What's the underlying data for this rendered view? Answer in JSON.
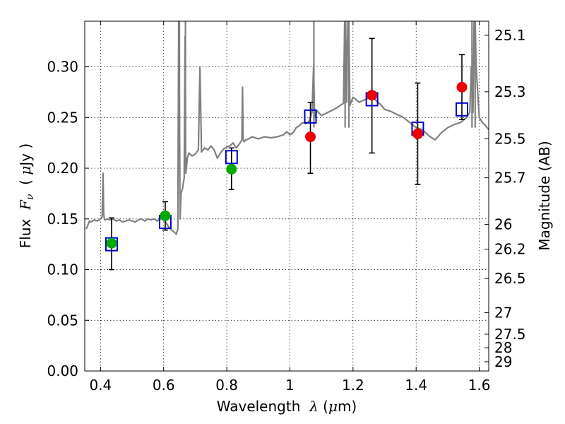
{
  "chart_data": {
    "type": "scatter",
    "xlabel": {
      "prefix": "Wavelength  ",
      "symbol": "λ",
      "unit_open": " (",
      "unit_mu": "μ",
      "unit_rest": "m)"
    },
    "ylabel": {
      "prefix": "Flux  ",
      "symbol": "F",
      "sub": "ν",
      "unit_open": "  ( ",
      "unit_mu": "μ",
      "unit_rest": "Jy )"
    },
    "y2label": "Magnitude (AB)",
    "xlim": [
      0.35,
      1.63
    ],
    "ylim": [
      0.0,
      0.345
    ],
    "xticks": [
      0.4,
      0.6,
      0.8,
      1.0,
      1.2,
      1.4,
      1.6
    ],
    "xtick_labels": [
      "0.4",
      "0.6",
      "0.8",
      "1",
      "1.2",
      "1.4",
      "1.6"
    ],
    "yticks": [
      0.0,
      0.05,
      0.1,
      0.15,
      0.2,
      0.25,
      0.3
    ],
    "ytick_labels": [
      "0.00",
      "0.05",
      "0.10",
      "0.15",
      "0.20",
      "0.25",
      "0.30"
    ],
    "right_axis_ticks": [
      {
        "mag": 25.1,
        "label": "25.1"
      },
      {
        "mag": 25.3,
        "label": "25.3"
      },
      {
        "mag": 25.5,
        "label": "25.5"
      },
      {
        "mag": 25.7,
        "label": "25.7"
      },
      {
        "mag": 26.0,
        "label": "26"
      },
      {
        "mag": 26.2,
        "label": "26.2"
      },
      {
        "mag": 26.5,
        "label": "26.5"
      },
      {
        "mag": 27.0,
        "label": "27"
      },
      {
        "mag": 27.5,
        "label": "27.5"
      },
      {
        "mag": 28.0,
        "label": "28"
      },
      {
        "mag": 29.0,
        "label": "29"
      }
    ],
    "grid": true,
    "series": [
      {
        "name": "model_spectrum",
        "kind": "line",
        "color": "#808080",
        "x": [
          0.355,
          0.36,
          0.365,
          0.37,
          0.38,
          0.39,
          0.4,
          0.405,
          0.408,
          0.41,
          0.412,
          0.415,
          0.42,
          0.43,
          0.44,
          0.45,
          0.46,
          0.47,
          0.48,
          0.49,
          0.5,
          0.51,
          0.52,
          0.53,
          0.54,
          0.55,
          0.56,
          0.57,
          0.58,
          0.59,
          0.6,
          0.61,
          0.62,
          0.63,
          0.64,
          0.645,
          0.648,
          0.65,
          0.652,
          0.655,
          0.66,
          0.662,
          0.665,
          0.668,
          0.67,
          0.672,
          0.675,
          0.68,
          0.69,
          0.7,
          0.71,
          0.715,
          0.72,
          0.73,
          0.74,
          0.75,
          0.76,
          0.77,
          0.78,
          0.79,
          0.8,
          0.81,
          0.82,
          0.83,
          0.84,
          0.848,
          0.85,
          0.852,
          0.855,
          0.86,
          0.87,
          0.88,
          0.9,
          0.92,
          0.94,
          0.96,
          0.98,
          0.99,
          1.0,
          1.01,
          1.02,
          1.03,
          1.04,
          1.05,
          1.06,
          1.07,
          1.075,
          1.078,
          1.08,
          1.082,
          1.085,
          1.09,
          1.1,
          1.12,
          1.14,
          1.16,
          1.17,
          1.175,
          1.18,
          1.185,
          1.19,
          1.2,
          1.22,
          1.24,
          1.26,
          1.28,
          1.29,
          1.3,
          1.32,
          1.34,
          1.36,
          1.38,
          1.4,
          1.42,
          1.44,
          1.46,
          1.48,
          1.5,
          1.52,
          1.54,
          1.56,
          1.57,
          1.575,
          1.58,
          1.585,
          1.59,
          1.6,
          1.61,
          1.62,
          1.63
        ],
        "y": [
          0.14,
          0.144,
          0.148,
          0.147,
          0.149,
          0.148,
          0.15,
          0.152,
          0.195,
          0.155,
          0.15,
          0.149,
          0.15,
          0.149,
          0.15,
          0.148,
          0.149,
          0.147,
          0.148,
          0.149,
          0.148,
          0.147,
          0.149,
          0.15,
          0.148,
          0.15,
          0.149,
          0.15,
          0.148,
          0.15,
          0.15,
          0.145,
          0.14,
          0.138,
          0.135,
          0.14,
          0.38,
          0.26,
          0.15,
          0.175,
          0.18,
          0.185,
          0.19,
          0.33,
          0.195,
          0.2,
          0.21,
          0.215,
          0.212,
          0.214,
          0.218,
          0.3,
          0.216,
          0.22,
          0.218,
          0.222,
          0.218,
          0.21,
          0.215,
          0.219,
          0.221,
          0.222,
          0.225,
          0.22,
          0.224,
          0.228,
          0.28,
          0.228,
          0.226,
          0.228,
          0.229,
          0.231,
          0.229,
          0.231,
          0.23,
          0.231,
          0.233,
          0.236,
          0.233,
          0.235,
          0.24,
          0.242,
          0.245,
          0.244,
          0.246,
          0.255,
          0.3,
          0.255,
          0.25,
          0.253,
          0.257,
          0.255,
          0.252,
          0.255,
          0.258,
          0.262,
          0.264,
          0.38,
          0.265,
          0.38,
          0.262,
          0.27,
          0.265,
          0.268,
          0.27,
          0.265,
          0.262,
          0.258,
          0.256,
          0.253,
          0.25,
          0.245,
          0.24,
          0.238,
          0.232,
          0.228,
          0.235,
          0.24,
          0.243,
          0.245,
          0.25,
          0.255,
          0.3,
          0.255,
          0.38,
          0.3,
          0.25,
          0.245,
          0.242,
          0.238
        ],
        "extends_past_top_near_um": [
          0.649,
          0.65,
          0.669,
          1.076,
          1.175,
          1.187,
          1.577,
          1.587
        ]
      },
      {
        "name": "model_bandpass_flux",
        "kind": "open_square",
        "color": "#0000c8",
        "x": [
          0.435,
          0.605,
          0.815,
          1.065,
          1.26,
          1.405,
          1.545
        ],
        "y": [
          0.125,
          0.147,
          0.211,
          0.251,
          0.268,
          0.239,
          0.258
        ]
      },
      {
        "name": "optical_photometry",
        "kind": "filled_circle",
        "color": "#00aa00",
        "x": [
          0.435,
          0.605,
          0.815
        ],
        "y": [
          0.126,
          0.153,
          0.199
        ],
        "yerr_low": [
          0.1,
          0.139,
          0.179
        ],
        "yerr_high": [
          0.151,
          0.167,
          0.22
        ]
      },
      {
        "name": "nir_photometry",
        "kind": "filled_circle",
        "color": "#ee0000",
        "x": [
          1.065,
          1.26,
          1.405,
          1.545
        ],
        "y": [
          0.231,
          0.272,
          0.234,
          0.28
        ],
        "yerr_low": [
          0.195,
          0.215,
          0.184,
          0.248
        ],
        "yerr_high": [
          0.265,
          0.328,
          0.284,
          0.312
        ]
      }
    ]
  }
}
